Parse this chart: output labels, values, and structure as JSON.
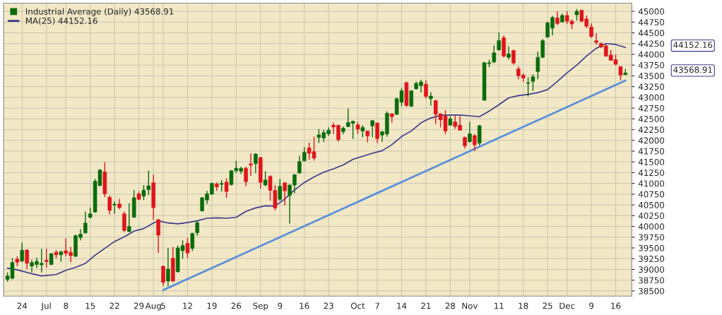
{
  "chart_data": {
    "type": "candlestick",
    "categories": [
      null,
      null,
      null,
      "24",
      null,
      null,
      null,
      null,
      "Jul",
      null,
      null,
      null,
      "8",
      null,
      null,
      null,
      null,
      "15",
      null,
      null,
      null,
      null,
      "22",
      null,
      null,
      null,
      null,
      "29",
      null,
      null,
      "Aug",
      null,
      "5",
      null,
      null,
      null,
      null,
      "12",
      null,
      null,
      null,
      null,
      "19",
      null,
      null,
      null,
      null,
      "26",
      null,
      null,
      null,
      null,
      "Sep",
      null,
      null,
      null,
      "9",
      null,
      null,
      null,
      null,
      "16",
      null,
      null,
      null,
      null,
      "23",
      null,
      null,
      null,
      null,
      null,
      "Oct",
      null,
      null,
      null,
      "7",
      null,
      null,
      null,
      null,
      "14",
      null,
      null,
      null,
      null,
      "21",
      null,
      null,
      null,
      null,
      "28",
      null,
      null,
      null,
      "Nov",
      null,
      null,
      null,
      null,
      null,
      "11",
      null,
      null,
      null,
      null,
      "18",
      null,
      null,
      null,
      null,
      "25",
      null,
      null,
      null,
      "Dec",
      null,
      null,
      null,
      null,
      "9",
      null,
      null,
      null,
      null,
      "16",
      null,
      null
    ],
    "series": [
      {
        "name": "Industrial Average (Daily) 43568.91",
        "colors": [
          "#0b6b0b",
          "#0b6b0b",
          "#e0141a",
          "#0b6b0b",
          "#e0141a",
          "#0b6b0b",
          "#0b6b0b",
          "#0b6b0b",
          "#e0141a",
          "#0b6b0b",
          "#e0141a",
          "#0b6b0b",
          "#e0141a",
          "#e0141a",
          "#0b6b0b",
          "#0b6b0b",
          "#0b6b0b",
          "#0b6b0b",
          "#0b6b0b",
          "#0b6b0b",
          "#e0141a",
          "#e0141a",
          "#0b6b0b",
          "#e0141a",
          "#e0141a",
          "#0b6b0b",
          "#0b6b0b",
          "#e0141a",
          "#0b6b0b",
          "#0b6b0b",
          "#e0141a",
          "#e0141a",
          "#e0141a",
          "#0b6b0b",
          "#e0141a",
          "#0b6b0b",
          "#0b6b0b",
          "#e0141a",
          "#0b6b0b",
          "#0b6b0b",
          "#0b6b0b",
          "#0b6b0b",
          "#0b6b0b",
          "#e0141a",
          "#0b6b0b",
          "#e0141a",
          "#0b6b0b",
          "#0b6b0b",
          "#0b6b0b",
          "#e0141a",
          "#e0141a",
          "#0b6b0b",
          "#e0141a",
          "#0b6b0b",
          "#e0141a",
          "#e0141a",
          "#0b6b0b",
          "#e0141a",
          "#0b6b0b",
          "#0b6b0b",
          "#0b6b0b",
          "#0b6b0b",
          "#e0141a",
          "#e0141a",
          "#0b6b0b",
          "#0b6b0b",
          "#0b6b0b",
          "#e0141a",
          "#e0141a",
          "#0b6b0b",
          "#0b6b0b",
          "#0b6b0b",
          "#e0141a",
          "#0b6b0b",
          "#e0141a",
          "#0b6b0b",
          "#e0141a",
          "#0b6b0b",
          "#0b6b0b",
          "#e0141a",
          "#0b6b0b",
          "#0b6b0b",
          "#e0141a",
          "#0b6b0b",
          "#0b6b0b",
          "#0b6b0b",
          "#e0141a",
          "#0b6b0b",
          "#e0141a",
          "#e0141a",
          "#e0141a",
          "#0b6b0b",
          "#e0141a",
          "#e0141a",
          "#e0141a",
          "#0b6b0b",
          "#e0141a",
          "#0b6b0b",
          "#0b6b0b",
          "#0b6b0b",
          "#0b6b0b",
          "#0b6b0b",
          "#e0141a",
          "#0b6b0b",
          "#e0141a",
          "#e0141a",
          "#e0141a",
          "#0b6b0b",
          "#0b6b0b",
          "#0b6b0b",
          "#0b6b0b",
          "#0b6b0b",
          "#0b6b0b",
          "#e0141a",
          "#0b6b0b",
          "#e0141a",
          "#e0141a",
          "#0b6b0b",
          "#e0141a",
          "#e0141a",
          "#e0141a",
          "#e0141a",
          "#e0141a",
          "#e0141a",
          "#e0141a",
          "#e0141a",
          "#e0141a",
          "#0b6b0b"
        ],
        "ohlc": [
          [
            38768,
            38928,
            38714,
            38848
          ],
          [
            38794,
            39260,
            38768,
            39158
          ],
          [
            39238,
            39303,
            39078,
            39169
          ],
          [
            39195,
            39623,
            39169,
            39447
          ],
          [
            39452,
            39463,
            39008,
            39142
          ],
          [
            39078,
            39222,
            38928,
            39158
          ],
          [
            39116,
            39276,
            39035,
            39190
          ],
          [
            39105,
            39479,
            38928,
            39142
          ],
          [
            39212,
            39479,
            39046,
            39180
          ],
          [
            39116,
            39383,
            39099,
            39367
          ],
          [
            39399,
            39447,
            39260,
            39340
          ],
          [
            39340,
            39436,
            39180,
            39410
          ],
          [
            39436,
            39720,
            39303,
            39372
          ],
          [
            39399,
            39527,
            39169,
            39319
          ],
          [
            39303,
            39811,
            39292,
            39784
          ],
          [
            39741,
            39934,
            39677,
            39821
          ],
          [
            39848,
            40346,
            39838,
            40078
          ],
          [
            40212,
            40442,
            40185,
            40292
          ],
          [
            40335,
            41105,
            40319,
            41052
          ],
          [
            40950,
            41335,
            40934,
            41309
          ],
          [
            41271,
            41496,
            40683,
            40758
          ],
          [
            40677,
            40720,
            40276,
            40372
          ],
          [
            40496,
            40586,
            40292,
            40517
          ],
          [
            40522,
            40640,
            40399,
            40437
          ],
          [
            40292,
            40346,
            39864,
            39907
          ],
          [
            39880,
            40533,
            39864,
            39998
          ],
          [
            40212,
            40843,
            40201,
            40667
          ],
          [
            40758,
            40811,
            40613,
            40629
          ],
          [
            40704,
            40961,
            40613,
            40843
          ],
          [
            40854,
            41298,
            40736,
            40945
          ],
          [
            41015,
            41202,
            40158,
            40437
          ],
          [
            40158,
            40169,
            39383,
            39795
          ],
          [
            39073,
            39089,
            38623,
            38698
          ],
          [
            38730,
            39500,
            38607,
            39008
          ],
          [
            39260,
            39527,
            38703,
            38730
          ],
          [
            38944,
            39559,
            38928,
            39500
          ],
          [
            39436,
            39677,
            39249,
            39554
          ],
          [
            39608,
            39730,
            39265,
            39383
          ],
          [
            39490,
            39854,
            39426,
            39837
          ],
          [
            39854,
            40132,
            39784,
            40089
          ],
          [
            40362,
            40683,
            40346,
            40667
          ],
          [
            40613,
            40827,
            40522,
            40758
          ],
          [
            40747,
            41015,
            40736,
            41004
          ],
          [
            40988,
            41025,
            40827,
            40918
          ],
          [
            40977,
            41079,
            40811,
            40998
          ],
          [
            41031,
            41121,
            40667,
            40811
          ],
          [
            40972,
            41309,
            40950,
            41293
          ],
          [
            41293,
            41523,
            41239,
            41351
          ],
          [
            41282,
            41389,
            41218,
            41346
          ],
          [
            41351,
            41389,
            40934,
            41041
          ],
          [
            41453,
            41699,
            41175,
            41426
          ],
          [
            41458,
            41699,
            41239,
            41683
          ],
          [
            41603,
            41610,
            40881,
            41025
          ],
          [
            40961,
            41282,
            40934,
            41079
          ],
          [
            41164,
            41186,
            40597,
            40838
          ],
          [
            40838,
            40961,
            40372,
            40426
          ],
          [
            40629,
            41105,
            40597,
            40934
          ],
          [
            41015,
            41020,
            40490,
            40827
          ],
          [
            40720,
            40988,
            40062,
            40961
          ],
          [
            40961,
            41218,
            40774,
            41202
          ],
          [
            41239,
            41646,
            41229,
            41507
          ],
          [
            41523,
            41844,
            41512,
            41721
          ],
          [
            41828,
            41951,
            41550,
            41699
          ],
          [
            41737,
            42085,
            41534,
            41587
          ],
          [
            42068,
            42261,
            41940,
            42127
          ],
          [
            42052,
            42245,
            41961,
            42181
          ],
          [
            42154,
            42299,
            42101,
            42234
          ],
          [
            42352,
            42406,
            42149,
            42309
          ],
          [
            42352,
            42363,
            41967,
            42015
          ],
          [
            42202,
            42325,
            42138,
            42282
          ],
          [
            42320,
            42737,
            42309,
            42416
          ],
          [
            42395,
            42459,
            42031,
            42443
          ],
          [
            42363,
            42432,
            42149,
            42261
          ],
          [
            42218,
            42352,
            42068,
            42299
          ],
          [
            42218,
            42225,
            41951,
            42101
          ],
          [
            42336,
            42470,
            42068,
            42459
          ],
          [
            42406,
            42410,
            41935,
            42042
          ],
          [
            42122,
            42218,
            41967,
            42202
          ],
          [
            42149,
            42673,
            42085,
            42630
          ],
          [
            42620,
            42625,
            42406,
            42550
          ],
          [
            42603,
            42994,
            42593,
            42967
          ],
          [
            42887,
            43219,
            42791,
            43155
          ],
          [
            43342,
            43369,
            42780,
            42807
          ],
          [
            42791,
            43165,
            42780,
            43155
          ],
          [
            43197,
            43369,
            43181,
            43326
          ],
          [
            43272,
            43411,
            43112,
            43358
          ],
          [
            43304,
            43395,
            42967,
            43021
          ],
          [
            42967,
            43122,
            42807,
            43031
          ],
          [
            42924,
            42941,
            42379,
            42609
          ],
          [
            42620,
            42625,
            42299,
            42475
          ],
          [
            42566,
            42700,
            42149,
            42218
          ],
          [
            42352,
            42566,
            42341,
            42502
          ],
          [
            42432,
            42582,
            42272,
            42325
          ],
          [
            42352,
            42566,
            42230,
            42234
          ],
          [
            42068,
            42085,
            41806,
            41871
          ],
          [
            41967,
            42432,
            41951,
            42154
          ],
          [
            42111,
            42149,
            41753,
            41897
          ],
          [
            41935,
            42363,
            41881,
            42341
          ],
          [
            42930,
            43823,
            42924,
            43807
          ],
          [
            43786,
            43877,
            43700,
            43807
          ],
          [
            43823,
            44208,
            43797,
            44037
          ],
          [
            44101,
            44508,
            44091,
            44321
          ],
          [
            44385,
            44438,
            43930,
            43957
          ],
          [
            43930,
            44187,
            43877,
            44011
          ],
          [
            44091,
            44107,
            43759,
            43797
          ],
          [
            43663,
            43716,
            43422,
            43502
          ],
          [
            43518,
            43556,
            43358,
            43449
          ],
          [
            43326,
            43460,
            43021,
            43342
          ],
          [
            43369,
            43540,
            43155,
            43476
          ],
          [
            43599,
            44064,
            43422,
            43930
          ],
          [
            43930,
            44358,
            43914,
            44321
          ],
          [
            44401,
            44760,
            44385,
            44733
          ],
          [
            44610,
            44893,
            44438,
            44856
          ],
          [
            44850,
            45000,
            44679,
            44717
          ],
          [
            44749,
            44947,
            44745,
            44904
          ],
          [
            44904,
            45000,
            44706,
            44770
          ],
          [
            44770,
            44813,
            44588,
            44706
          ],
          [
            44920,
            45054,
            44786,
            45000
          ],
          [
            45027,
            45038,
            44749,
            44770
          ],
          [
            44824,
            44904,
            44610,
            44652
          ],
          [
            44636,
            44717,
            44385,
            44412
          ],
          [
            44316,
            44492,
            44225,
            44278
          ],
          [
            44251,
            44278,
            44144,
            44171
          ],
          [
            44198,
            44225,
            43941,
            43957
          ],
          [
            43984,
            44101,
            43850,
            43861
          ],
          [
            43877,
            44000,
            43743,
            43770
          ],
          [
            43716,
            43720,
            43396,
            43518
          ],
          [
            43529,
            43663,
            43518,
            43568.91
          ]
        ]
      },
      {
        "type": "line",
        "name": "MA(25) 44152.16",
        "color": "#3c3a8a",
        "values": [
          39030,
          null,
          38990,
          null,
          null,
          38900,
          null,
          38850,
          null,
          null,
          38880,
          null,
          38980,
          null,
          39050,
          null,
          39140,
          null,
          39330,
          null,
          39490,
          null,
          39650,
          null,
          39760,
          null,
          39890,
          null,
          39950,
          null,
          40080,
          40130,
          null,
          40080,
          null,
          40060,
          null,
          40090,
          null,
          40130,
          null,
          40190,
          null,
          40200,
          null,
          40190,
          null,
          40210,
          null,
          40350,
          null,
          40430,
          null,
          40480,
          null,
          40470,
          null,
          40640,
          null,
          40850,
          null,
          41020,
          null,
          41150,
          null,
          41260,
          null,
          41340,
          null,
          41430,
          null,
          41560,
          null,
          41630,
          null,
          41700,
          null,
          41760,
          null,
          41900,
          null,
          42090,
          null,
          42220,
          null,
          42410,
          null,
          42520,
          null,
          42580,
          null,
          42590,
          null,
          42590,
          null,
          42570,
          null,
          42550,
          null,
          42680,
          null,
          42830,
          null,
          42990,
          null,
          43040,
          null,
          43070,
          null,
          43110,
          null,
          43180,
          null,
          43370,
          null,
          43570,
          null,
          43750,
          null,
          43960,
          null,
          44140,
          null,
          44250,
          null,
          44230,
          null,
          44160
        ]
      },
      {
        "type": "line",
        "color": "#5b8fd8",
        "values": [
          null,
          null,
          null,
          null,
          null,
          null,
          null,
          null,
          null,
          null,
          null,
          null,
          null,
          null,
          null,
          null,
          null,
          null,
          null,
          null,
          null,
          null,
          null,
          null,
          null,
          null,
          null,
          null,
          null,
          null,
          null,
          null,
          38520,
          null,
          null,
          null,
          null,
          null,
          null,
          null,
          null,
          null,
          null,
          null,
          null,
          null,
          null,
          null,
          null,
          null,
          null,
          null,
          null,
          null,
          null,
          null,
          null,
          null,
          null,
          null,
          null,
          null,
          null,
          null,
          null,
          null,
          null,
          null,
          null,
          null,
          null,
          null,
          null,
          null,
          null,
          null,
          null,
          null,
          null,
          null,
          null,
          null,
          null,
          null,
          null,
          null,
          null,
          null,
          null,
          null,
          null,
          null,
          null,
          null,
          null,
          null,
          null,
          null,
          null,
          null,
          null,
          null,
          null,
          null,
          null,
          null,
          null,
          null,
          null,
          null,
          null,
          null,
          null,
          null,
          null,
          null,
          null,
          null,
          null,
          null,
          null,
          null,
          null,
          null,
          null,
          null,
          null,
          43390
        ]
      }
    ],
    "ylim": [
      38380,
      45190
    ],
    "yticks": [
      38500,
      38750,
      39000,
      39250,
      39500,
      39750,
      40000,
      40250,
      40500,
      40750,
      41000,
      41250,
      41500,
      41750,
      42000,
      42250,
      42500,
      42750,
      43000,
      43250,
      43500,
      43750,
      44000,
      44250,
      44500,
      44750,
      45000
    ],
    "annotations": [
      "44152.16",
      "43568.91"
    ],
    "grid": true,
    "legend": "top left"
  }
}
